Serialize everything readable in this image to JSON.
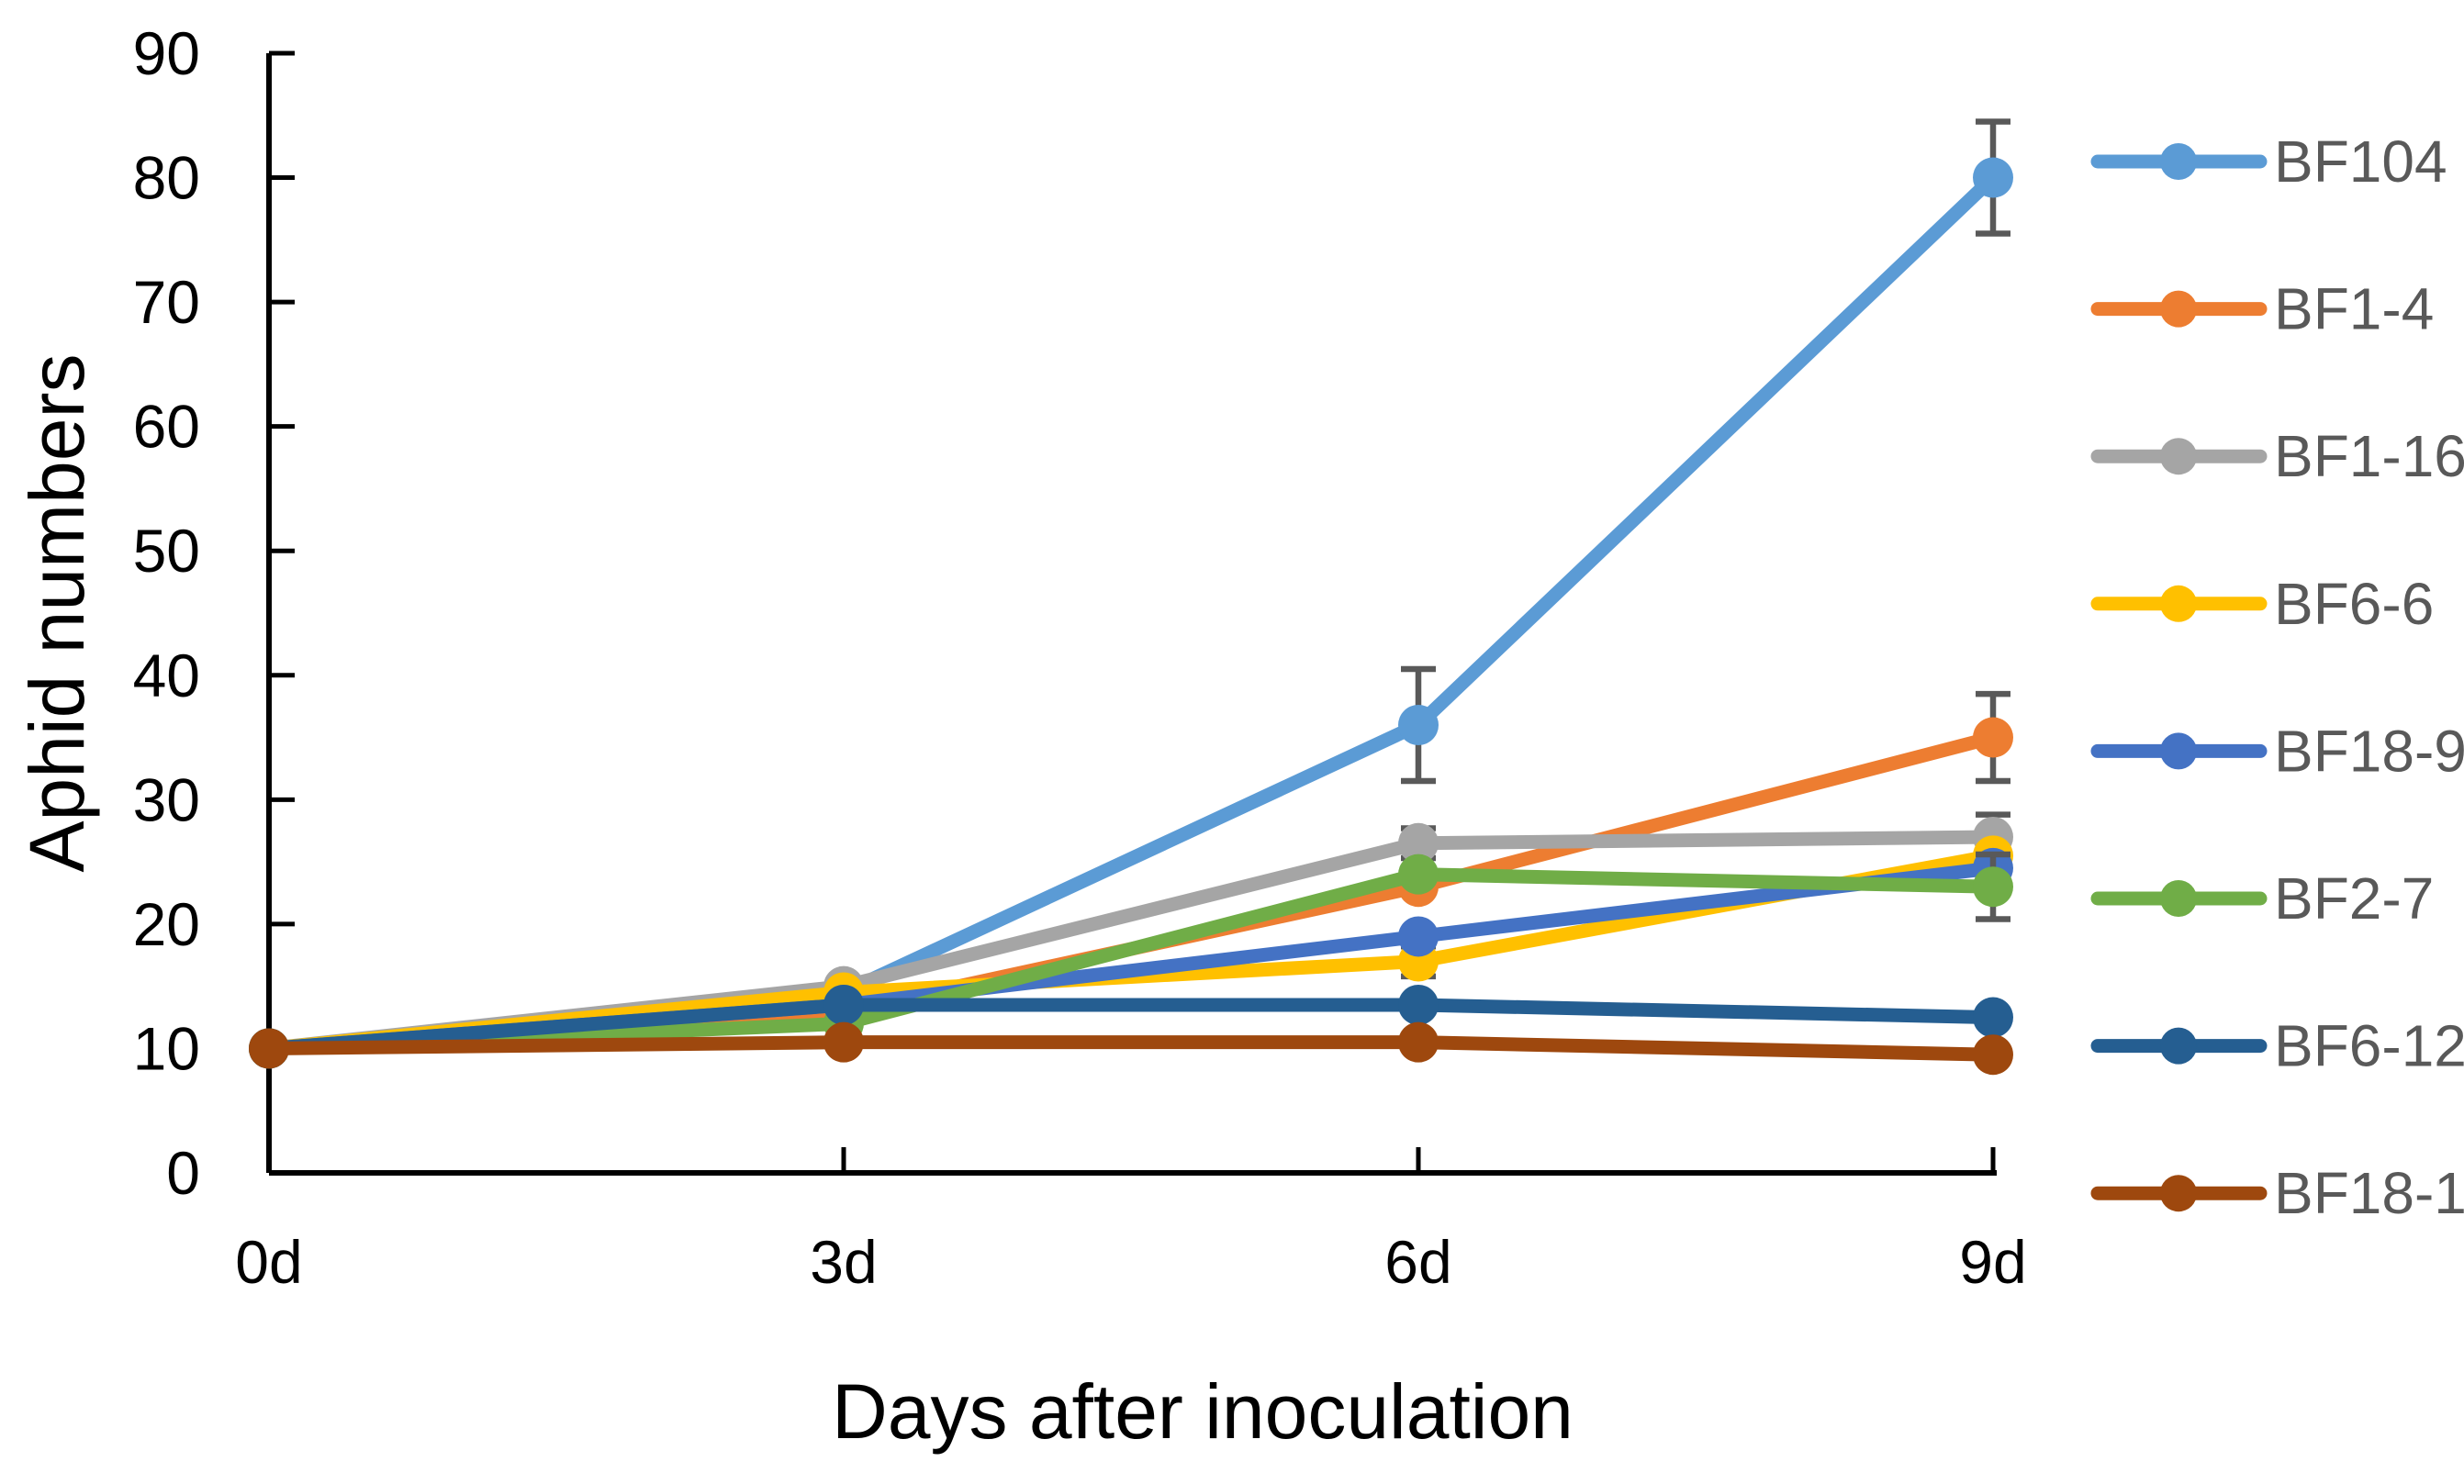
{
  "chart_data": {
    "type": "line",
    "xlabel": "Days after inoculation",
    "ylabel": "Aphid numbers",
    "categories": [
      "0d",
      "3d",
      "6d",
      "9d"
    ],
    "ylim": [
      0,
      90
    ],
    "ytick_step": 10,
    "ytick_labels": [
      "0",
      "10",
      "20",
      "30",
      "40",
      "50",
      "60",
      "70",
      "80",
      "90"
    ],
    "grid": false,
    "legend_position": "right",
    "marker": "circle",
    "axis_color": "#000000",
    "tick_label_color": "#000000",
    "legend_text_color": "#595959",
    "error_bar_color": "#595959",
    "series": [
      {
        "name": "BF104",
        "color": "#5B9BD5",
        "values": [
          10,
          14.5,
          36,
          80
        ],
        "errors": [
          0,
          0,
          4.5,
          4.5
        ]
      },
      {
        "name": "BF1-4",
        "color": "#ED7D31",
        "values": [
          10,
          13,
          23,
          35
        ],
        "errors": [
          0,
          0,
          0,
          3.5
        ]
      },
      {
        "name": "BF1-16",
        "color": "#A5A5A5",
        "values": [
          10,
          15,
          26.5,
          27
        ],
        "errors": [
          0,
          0,
          1.2,
          1.8
        ]
      },
      {
        "name": "BF6-6",
        "color": "#FFC000",
        "values": [
          10,
          14.5,
          17,
          25.5
        ],
        "errors": [
          0,
          0,
          1.2,
          0
        ]
      },
      {
        "name": "BF18-9",
        "color": "#4472C4",
        "values": [
          10,
          13.5,
          19,
          24.5
        ],
        "errors": [
          0,
          0,
          0,
          0
        ]
      },
      {
        "name": "BF2-7",
        "color": "#70AD47",
        "values": [
          10,
          12,
          24,
          23
        ],
        "errors": [
          0,
          0,
          0,
          2.6
        ]
      },
      {
        "name": "BF6-12",
        "color": "#255E91",
        "values": [
          10,
          13.5,
          13.5,
          12.5
        ],
        "errors": [
          0,
          0,
          0,
          0
        ]
      },
      {
        "name": "BF18-1",
        "color": "#9E480E",
        "values": [
          10,
          10.5,
          10.5,
          9.5
        ],
        "errors": [
          0,
          0,
          0,
          0
        ]
      }
    ]
  }
}
